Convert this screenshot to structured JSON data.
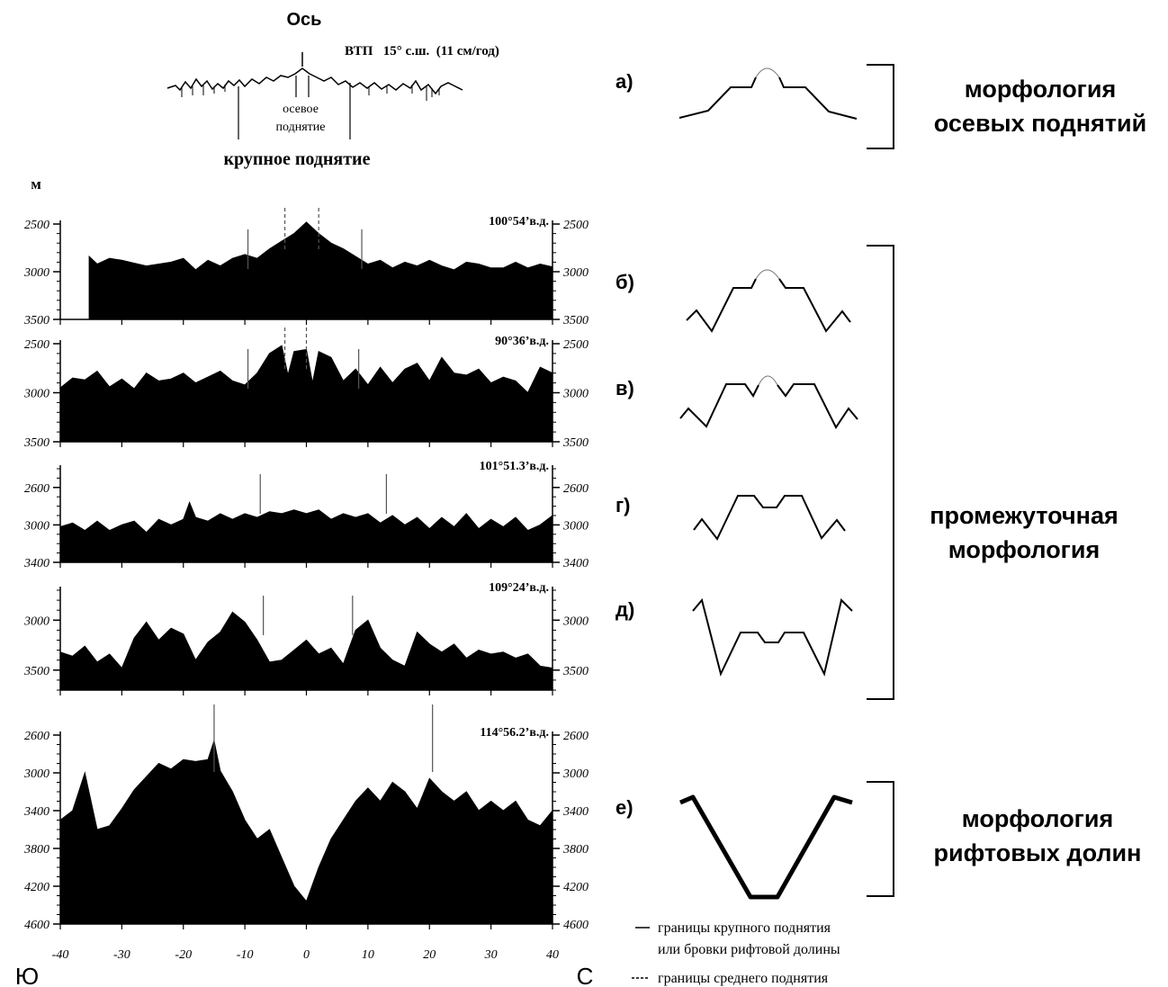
{
  "header": {
    "axis_label": "Ось",
    "ridge_info": "ВТП   15° с.ш.  (11 см/год)",
    "axial_high_label_1": "осевое",
    "axial_high_label_2": "поднятие",
    "large_high_label": "крупное поднятие",
    "unit_label": "м"
  },
  "chart_data": {
    "type": "area",
    "xlabel": "",
    "xlim": [
      -40,
      40
    ],
    "x_ticks": [
      -40,
      -30,
      -20,
      -10,
      0,
      10,
      20,
      30,
      40
    ],
    "x_tick_labels": [
      "-40",
      "-30",
      "-20",
      "-10",
      "0",
      "10",
      "20",
      "30",
      "40"
    ],
    "left_end_label": "Ю",
    "right_end_label": "С",
    "profiles": [
      {
        "label": "100°54’в.д.",
        "ylim": [
          2500,
          3500
        ],
        "y_ticks": [
          2500,
          3000,
          3500
        ],
        "y_tick_labels": [
          "2500",
          "3000",
          "3500"
        ],
        "x": [
          -35.3,
          -34,
          -32,
          -30,
          -28,
          -26,
          -24,
          -22,
          -20,
          -18,
          -16,
          -14,
          -12,
          -10,
          -8,
          -6,
          -4,
          -2,
          0,
          1,
          2,
          4,
          6,
          8,
          10,
          12,
          14,
          16,
          18,
          20,
          22,
          24,
          26,
          28,
          30,
          32,
          34,
          36,
          38,
          40
        ],
        "y": [
          2840,
          2920,
          2860,
          2880,
          2910,
          2940,
          2920,
          2900,
          2860,
          2980,
          2880,
          2940,
          2860,
          2820,
          2860,
          2760,
          2680,
          2600,
          2480,
          2540,
          2600,
          2700,
          2760,
          2840,
          2920,
          2880,
          2960,
          2900,
          2940,
          2880,
          2940,
          2980,
          2900,
          2920,
          2960,
          2960,
          2900,
          2960,
          2920,
          2950
        ],
        "large_high_bounds": [
          -9.5,
          9
        ],
        "axial_high_bounds": [
          -3.5,
          2
        ]
      },
      {
        "label": "90°36’в.д.",
        "ylim": [
          2500,
          3500
        ],
        "y_ticks": [
          2500,
          3000,
          3500
        ],
        "y_tick_labels": [
          "2500",
          "3000",
          "3500"
        ],
        "x": [
          -40,
          -38,
          -36,
          -34,
          -32,
          -30,
          -28,
          -26,
          -24,
          -22,
          -20,
          -18,
          -16,
          -14,
          -12,
          -10,
          -8,
          -6,
          -4,
          -3,
          -2,
          0,
          1,
          2,
          4,
          6,
          8,
          10,
          12,
          14,
          16,
          18,
          20,
          22,
          24,
          26,
          28,
          30,
          32,
          34,
          36,
          38,
          40
        ],
        "y": [
          2950,
          2850,
          2870,
          2780,
          2940,
          2860,
          2960,
          2800,
          2880,
          2860,
          2800,
          2900,
          2840,
          2780,
          2880,
          2920,
          2800,
          2600,
          2520,
          2820,
          2580,
          2560,
          2900,
          2580,
          2640,
          2880,
          2760,
          2920,
          2740,
          2900,
          2760,
          2700,
          2880,
          2640,
          2800,
          2820,
          2760,
          2900,
          2840,
          2880,
          3000,
          2740,
          2800
        ],
        "large_high_bounds": [
          -9.5,
          8.5
        ],
        "axial_high_bounds": [
          -3.5,
          0
        ]
      },
      {
        "label": "101°51.3’в.д.",
        "ylim": [
          2400,
          3400
        ],
        "y_ticks": [
          2600,
          3000,
          3400
        ],
        "y_tick_labels": [
          "2600",
          "3000",
          "3400"
        ],
        "x": [
          -40,
          -38,
          -36,
          -34,
          -32,
          -30,
          -28,
          -26,
          -24,
          -22,
          -20,
          -19,
          -18,
          -16,
          -14,
          -12,
          -10,
          -8,
          -6,
          -4,
          -2,
          0,
          2,
          4,
          6,
          8,
          10,
          12,
          14,
          16,
          18,
          20,
          22,
          24,
          26,
          28,
          30,
          32,
          34,
          36,
          38,
          40
        ],
        "y": [
          3020,
          2980,
          3060,
          2960,
          3060,
          3000,
          2960,
          3080,
          2940,
          3000,
          2940,
          2760,
          2920,
          2960,
          2880,
          2940,
          2880,
          2920,
          2860,
          2880,
          2840,
          2880,
          2840,
          2940,
          2880,
          2920,
          2880,
          2980,
          2900,
          3000,
          2920,
          3040,
          2920,
          3020,
          2880,
          3040,
          2940,
          3020,
          2920,
          3060,
          3000,
          2900
        ],
        "large_high_bounds": [
          -7.5,
          13
        ]
      },
      {
        "label": "109°24’в.д.",
        "ylim": [
          2700,
          3700
        ],
        "y_ticks": [
          3000,
          3500
        ],
        "y_tick_labels": [
          "3000",
          "3500"
        ],
        "x": [
          -40,
          -38,
          -36,
          -34,
          -32,
          -30,
          -28,
          -26,
          -24,
          -22,
          -20,
          -18,
          -16,
          -14,
          -12,
          -10,
          -8,
          -6,
          -4,
          -2,
          0,
          2,
          4,
          6,
          8,
          10,
          12,
          14,
          16,
          18,
          20,
          22,
          24,
          26,
          28,
          30,
          32,
          34,
          36,
          38,
          40
        ],
        "y": [
          3320,
          3360,
          3260,
          3420,
          3340,
          3480,
          3180,
          3020,
          3200,
          3080,
          3140,
          3400,
          3220,
          3120,
          2920,
          3020,
          3200,
          3420,
          3400,
          3300,
          3200,
          3340,
          3280,
          3440,
          3100,
          3000,
          3280,
          3400,
          3460,
          3120,
          3240,
          3320,
          3240,
          3380,
          3300,
          3340,
          3320,
          3380,
          3340,
          3460,
          3480
        ],
        "large_high_bounds": [
          -7,
          7.5
        ]
      },
      {
        "label": "114°56.2’в.д.",
        "ylim": [
          2600,
          4600
        ],
        "y_ticks": [
          2600,
          3000,
          3400,
          3800,
          4200,
          4600
        ],
        "y_tick_labels": [
          "2600",
          "3000",
          "3400",
          "3800",
          "4200",
          "4600"
        ],
        "x": [
          -40,
          -38,
          -36,
          -34,
          -32,
          -30,
          -28,
          -26,
          -24,
          -22,
          -20,
          -18,
          -16,
          -15,
          -14,
          -12,
          -10,
          -8,
          -6,
          -4,
          -2,
          0,
          2,
          4,
          6,
          8,
          10,
          12,
          14,
          16,
          18,
          20,
          22,
          24,
          26,
          28,
          30,
          32,
          34,
          36,
          38,
          40
        ],
        "y": [
          3500,
          3400,
          3000,
          3600,
          3560,
          3380,
          3180,
          3040,
          2900,
          2960,
          2860,
          2880,
          2860,
          2660,
          2980,
          3200,
          3500,
          3700,
          3600,
          3900,
          4200,
          4360,
          4000,
          3700,
          3500,
          3300,
          3160,
          3300,
          3100,
          3200,
          3380,
          3060,
          3200,
          3300,
          3200,
          3400,
          3300,
          3400,
          3300,
          3500,
          3560,
          3400
        ],
        "large_high_bounds": [
          -15,
          20.5
        ]
      }
    ]
  },
  "schematics": [
    {
      "letter": "а)",
      "group_label_1": "морфология",
      "group_label_2": "осевых поднятий"
    },
    {
      "letter": "б)"
    },
    {
      "letter": "в)"
    },
    {
      "letter": "г)",
      "group_label_1": "промежуточная",
      "group_label_2": "морфология"
    },
    {
      "letter": "д)"
    },
    {
      "letter": "е)",
      "group_label_1": "морфология",
      "group_label_2": "рифтовых долин"
    }
  ],
  "legend": {
    "solid_line_text_1": "границы крупного поднятия",
    "solid_line_text_2": "или бровки рифтовой долины",
    "dashed_line_text": "границы среднего поднятия"
  }
}
